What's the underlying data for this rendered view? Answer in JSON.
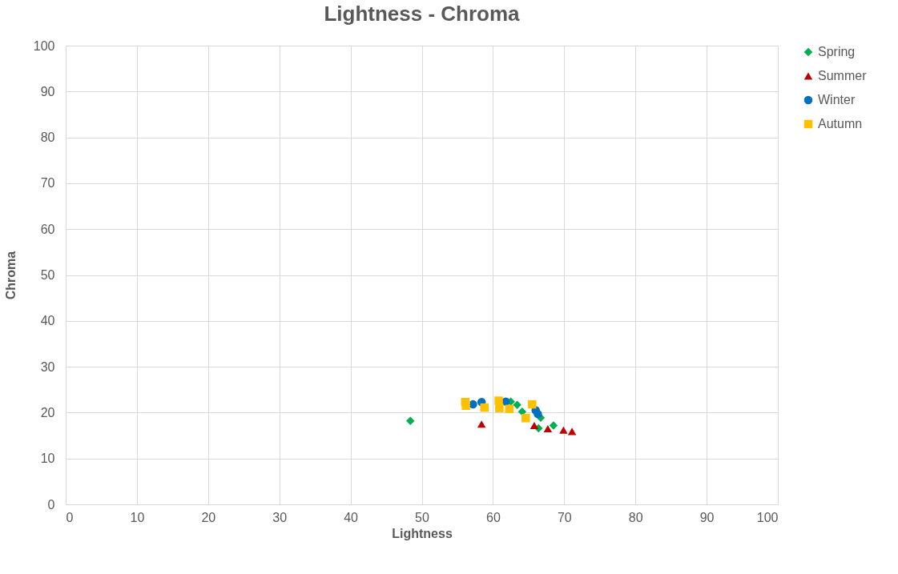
{
  "chart_data": {
    "type": "scatter",
    "title": "Lightness - Chroma",
    "xlabel": "Lightness",
    "ylabel": "Chroma",
    "xlim": [
      0,
      100
    ],
    "xticks": [
      0,
      10,
      20,
      30,
      40,
      50,
      60,
      70,
      80,
      90,
      100
    ],
    "ylim": [
      0,
      100
    ],
    "yticks": [
      0,
      10,
      20,
      30,
      40,
      50,
      60,
      70,
      80,
      90,
      100
    ],
    "grid": true,
    "legend": "right",
    "series": [
      {
        "name": "Spring",
        "color": "#00b050",
        "marker": "diamond",
        "x": [
          48.4,
          62.5,
          63.4,
          64.1,
          66.7,
          66.4,
          68.5
        ],
        "values": [
          18.2,
          22.4,
          21.7,
          20.2,
          18.9,
          16.6,
          17.2
        ]
      },
      {
        "name": "Summer",
        "color": "#c00000",
        "marker": "triangle",
        "x": [
          58.4,
          65.8,
          67.7,
          69.9,
          71.1
        ],
        "values": [
          17.5,
          17.2,
          16.5,
          16.2,
          15.9
        ]
      },
      {
        "name": "Winter",
        "color": "#0070c0",
        "marker": "circle",
        "x": [
          57.2,
          58.4,
          61.8,
          66.3,
          66.0
        ],
        "values": [
          21.8,
          22.3,
          22.4,
          19.7,
          20.5
        ]
      },
      {
        "name": "Autumn",
        "color": "#ffc000",
        "marker": "square",
        "x": [
          56.1,
          56.2,
          58.8,
          60.8,
          60.9,
          62.3,
          65.5,
          64.6
        ],
        "values": [
          22.3,
          21.5,
          21.1,
          22.6,
          21.0,
          20.8,
          21.8,
          18.8
        ]
      }
    ]
  }
}
